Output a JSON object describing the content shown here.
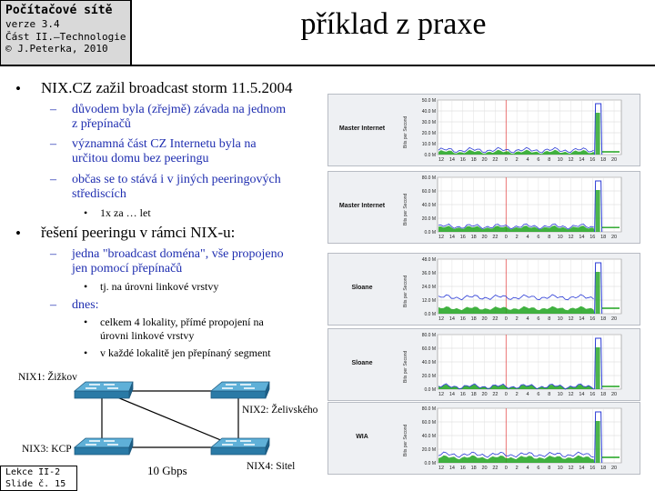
{
  "header": {
    "course": "Počítačové sítě",
    "version": "verze 3.4",
    "part": "Část II.–Technologie",
    "copyright": "© J.Peterka, 2010"
  },
  "title": "příklad z praxe",
  "bullets": {
    "l1": "NIX.CZ zažil broadcast storm 11.5.2004",
    "l1a1": "důvodem byla (zřejmě)  závada na jednom",
    "l1a2": "z přepínačů",
    "l1b1": "významná část CZ Internetu byla na",
    "l1b2": "určitou domu bez peeringu",
    "l1c1": "občas se to stává i  v jiných peeringových",
    "l1c2": "střediscích",
    "l1c3": "1x za … let",
    "l2": "řešení peeringu v rámci NIX-u:",
    "l2a1": "jedna \"broadcast doména\", vše propojeno",
    "l2a2": "jen pomocí přepínačů",
    "l2a3": "tj. na úrovni linkové vrstvy",
    "l2b": "dnes:",
    "l2b1a": "celkem 4 lokality, přímé propojení na",
    "l2b1b": "úrovni linkové vrstvy",
    "l2b2": "v každé lokalitě jen přepínaný segment"
  },
  "graphs": {
    "ylabel": "Bits per Second",
    "x_ticks": [
      "12",
      "14",
      "16",
      "18",
      "20",
      "22",
      "0",
      "2",
      "4",
      "6",
      "8",
      "10",
      "12",
      "14",
      "16",
      "18",
      "20"
    ],
    "items": [
      {
        "label": "Master Internet",
        "y_ticks": [
          "50.0 M",
          "40.0 M",
          "30.0 M",
          "20.0 M",
          "10.0 M",
          "0.0 M"
        ]
      },
      {
        "label": "Master Internet",
        "y_ticks": [
          "80.0 M",
          "60.0 M",
          "40.0 M",
          "20.0 M",
          "0.0 M"
        ]
      },
      {
        "label": "Sloane",
        "y_ticks": [
          "48.0 M",
          "36.0 M",
          "24.0 M",
          "12.0 M",
          "0.0 M"
        ]
      },
      {
        "label": "Sloane",
        "y_ticks": [
          "80.0 M",
          "60.0 M",
          "40.0 M",
          "20.0 M",
          "0.0 M"
        ]
      },
      {
        "label": "WIA",
        "y_ticks": [
          "80.0 M",
          "60.0 M",
          "40.0 M",
          "20.0 M",
          "0.0 M"
        ]
      }
    ]
  },
  "network": {
    "nix1": "NIX1: Žižkov",
    "nix2": "NIX2: Želivského",
    "nix3": "NIX3: KCP",
    "nix4": "NIX4: Sitel",
    "speed": "10 Gbps"
  },
  "footer": {
    "lesson": "Lekce II-2",
    "slide": "Slide č. 15"
  }
}
